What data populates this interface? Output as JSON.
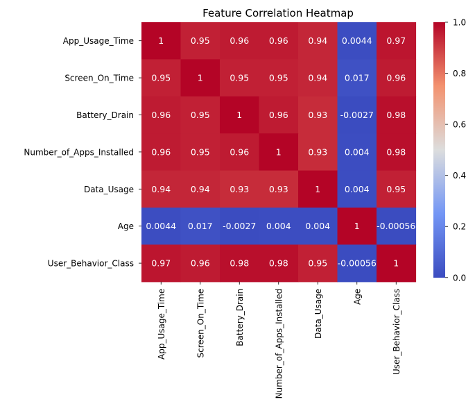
{
  "chart_data": {
    "type": "heatmap",
    "title": "Feature Correlation Heatmap",
    "row_labels": [
      "App_Usage_Time",
      "Screen_On_Time",
      "Battery_Drain",
      "Number_of_Apps_Installed",
      "Data_Usage",
      "Age",
      "User_Behavior_Class"
    ],
    "col_labels": [
      "App_Usage_Time",
      "Screen_On_Time",
      "Battery_Drain",
      "Number_of_Apps_Installed",
      "Data_Usage",
      "Age",
      "User_Behavior_Class"
    ],
    "values": [
      [
        1,
        0.95,
        0.96,
        0.96,
        0.94,
        0.0044,
        0.97
      ],
      [
        0.95,
        1,
        0.95,
        0.95,
        0.94,
        0.017,
        0.96
      ],
      [
        0.96,
        0.95,
        1,
        0.96,
        0.93,
        -0.0027,
        0.98
      ],
      [
        0.96,
        0.95,
        0.96,
        1,
        0.93,
        0.004,
        0.98
      ],
      [
        0.94,
        0.94,
        0.93,
        0.93,
        1,
        0.004,
        0.95
      ],
      [
        0.0044,
        0.017,
        -0.0027,
        0.004,
        0.004,
        1,
        -0.00056
      ],
      [
        0.97,
        0.96,
        0.98,
        0.98,
        0.95,
        -0.00056,
        1
      ]
    ],
    "value_labels": [
      [
        "1",
        "0.95",
        "0.96",
        "0.96",
        "0.94",
        "0.0044",
        "0.97"
      ],
      [
        "0.95",
        "1",
        "0.95",
        "0.95",
        "0.94",
        "0.017",
        "0.96"
      ],
      [
        "0.96",
        "0.95",
        "1",
        "0.96",
        "0.93",
        "-0.0027",
        "0.98"
      ],
      [
        "0.96",
        "0.95",
        "0.96",
        "1",
        "0.93",
        "0.004",
        "0.98"
      ],
      [
        "0.94",
        "0.94",
        "0.93",
        "0.93",
        "1",
        "0.004",
        "0.95"
      ],
      [
        "0.0044",
        "0.017",
        "-0.0027",
        "0.004",
        "0.004",
        "1",
        "-0.00056"
      ],
      [
        "0.97",
        "0.96",
        "0.98",
        "0.98",
        "0.95",
        "-0.00056",
        "1"
      ]
    ],
    "colormap": "coolwarm",
    "vmin": -0.00056,
    "vmax": 1,
    "colorbar_ticks": [
      0.0,
      0.2,
      0.4,
      0.6,
      0.8,
      1.0
    ],
    "colorbar_tick_labels": [
      "0.0",
      "0.2",
      "0.4",
      "0.6",
      "0.8",
      "1.0"
    ]
  }
}
